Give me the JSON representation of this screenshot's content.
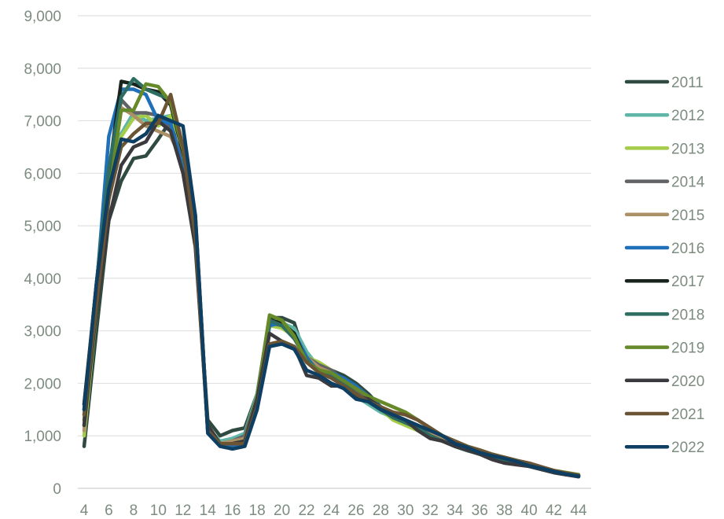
{
  "chart_data": {
    "type": "line",
    "title": "",
    "xlabel": "",
    "ylabel": "",
    "xlim": [
      4,
      44
    ],
    "ylim": [
      0,
      9000
    ],
    "grid": true,
    "legend_position": "right",
    "x_ticks": [
      "4",
      "6",
      "8",
      "10",
      "12",
      "14",
      "16",
      "18",
      "20",
      "22",
      "24",
      "26",
      "28",
      "30",
      "32",
      "34",
      "36",
      "38",
      "40",
      "42",
      "44"
    ],
    "y_ticks": [
      "0",
      "1,000",
      "2,000",
      "3,000",
      "4,000",
      "5,000",
      "6,000",
      "7,000",
      "8,000",
      "9,000"
    ],
    "x": [
      4,
      5,
      6,
      7,
      8,
      9,
      10,
      11,
      12,
      13,
      14,
      15,
      16,
      17,
      18,
      19,
      20,
      21,
      22,
      23,
      24,
      25,
      26,
      27,
      28,
      29,
      30,
      31,
      32,
      33,
      34,
      35,
      36,
      37,
      38,
      39,
      40,
      41,
      42,
      43,
      44
    ],
    "series": [
      {
        "name": "2011",
        "color": "#2f4a40",
        "values": [
          800,
          3000,
          5100,
          5850,
          6280,
          6330,
          6650,
          7000,
          6100,
          4700,
          1300,
          1000,
          1100,
          1150,
          1800,
          3250,
          3250,
          3150,
          2400,
          2350,
          2250,
          2150,
          2000,
          1800,
          1550,
          1400,
          1300,
          1200,
          1050,
          900,
          800,
          730,
          690,
          610,
          560,
          520,
          450,
          390,
          330,
          290,
          250
        ]
      },
      {
        "name": "2012",
        "color": "#5fb6a6",
        "values": [
          1400,
          3700,
          6000,
          6750,
          7150,
          7000,
          7050,
          7100,
          6500,
          5000,
          1150,
          900,
          950,
          1050,
          1800,
          3150,
          3150,
          3050,
          2600,
          2300,
          2200,
          2000,
          1750,
          1600,
          1450,
          1350,
          1250,
          1150,
          1000,
          900,
          800,
          720,
          660,
          600,
          560,
          500,
          420,
          370,
          310,
          280,
          230
        ]
      },
      {
        "name": "2013",
        "color": "#a4cc4a",
        "values": [
          1000,
          3400,
          5750,
          6700,
          7050,
          7100,
          6900,
          7100,
          6500,
          4900,
          1100,
          850,
          900,
          950,
          1700,
          3100,
          3050,
          2900,
          2500,
          2400,
          2250,
          2050,
          1850,
          1700,
          1500,
          1300,
          1200,
          1100,
          1000,
          900,
          800,
          720,
          650,
          600,
          550,
          500,
          420,
          360,
          310,
          270,
          230
        ]
      },
      {
        "name": "2014",
        "color": "#606266",
        "values": [
          1300,
          3800,
          5850,
          7400,
          7150,
          7150,
          7100,
          6850,
          6300,
          4800,
          1150,
          850,
          900,
          1000,
          1750,
          3150,
          3100,
          2900,
          2500,
          2350,
          2250,
          2050,
          1850,
          1700,
          1550,
          1400,
          1300,
          1200,
          1050,
          900,
          800,
          720,
          650,
          600,
          550,
          500,
          430,
          370,
          310,
          280,
          230
        ]
      },
      {
        "name": "2015",
        "color": "#ad9166",
        "values": [
          1100,
          3700,
          5650,
          7250,
          7100,
          6900,
          6800,
          6700,
          6200,
          4700,
          1100,
          850,
          900,
          950,
          1650,
          3200,
          3100,
          2900,
          2500,
          2300,
          2200,
          2000,
          1800,
          1650,
          1500,
          1350,
          1300,
          1150,
          1050,
          950,
          850,
          750,
          700,
          620,
          560,
          510,
          430,
          370,
          320,
          280,
          240
        ]
      },
      {
        "name": "2016",
        "color": "#1f70b8",
        "values": [
          1600,
          3800,
          6700,
          7600,
          7600,
          7500,
          7000,
          6950,
          6100,
          5000,
          1150,
          800,
          800,
          850,
          1600,
          3100,
          3150,
          2950,
          2500,
          2200,
          2200,
          2100,
          1950,
          1750,
          1550,
          1400,
          1300,
          1150,
          1000,
          900,
          800,
          730,
          670,
          610,
          560,
          500,
          420,
          360,
          310,
          280,
          240
        ]
      },
      {
        "name": "2017",
        "color": "#18241d",
        "values": [
          1600,
          3900,
          6000,
          7750,
          7700,
          7600,
          7550,
          7300,
          6400,
          5200,
          1100,
          850,
          850,
          900,
          1650,
          3200,
          3150,
          2950,
          2400,
          2250,
          2150,
          2000,
          1750,
          1650,
          1500,
          1350,
          1250,
          1150,
          1000,
          900,
          800,
          720,
          660,
          600,
          550,
          480,
          420,
          360,
          300,
          260,
          230
        ]
      },
      {
        "name": "2018",
        "color": "#2e6e62",
        "values": [
          1500,
          3900,
          6100,
          7450,
          7800,
          7600,
          7500,
          7400,
          6500,
          5100,
          1150,
          850,
          850,
          900,
          1700,
          3200,
          3100,
          2850,
          2450,
          2200,
          2150,
          2000,
          1800,
          1650,
          1500,
          1350,
          1250,
          1150,
          1000,
          900,
          800,
          720,
          660,
          600,
          550,
          480,
          420,
          360,
          310,
          270,
          230
        ]
      },
      {
        "name": "2019",
        "color": "#668a29",
        "values": [
          1200,
          3600,
          5600,
          7200,
          7200,
          7700,
          7650,
          7350,
          6450,
          5000,
          1100,
          850,
          850,
          900,
          1750,
          3300,
          3200,
          2900,
          2400,
          2250,
          2200,
          2050,
          1900,
          1750,
          1650,
          1550,
          1450,
          1300,
          1150,
          1000,
          900,
          800,
          730,
          650,
          590,
          530,
          450,
          390,
          340,
          300,
          260
        ]
      },
      {
        "name": "2020",
        "color": "#3a3a3e",
        "values": [
          1200,
          3400,
          5100,
          6150,
          6500,
          6600,
          7000,
          6800,
          6000,
          4600,
          1200,
          850,
          850,
          900,
          1700,
          2950,
          2800,
          2700,
          2150,
          2100,
          1950,
          1950,
          1750,
          1700,
          1550,
          1400,
          1300,
          1100,
          950,
          900,
          800,
          730,
          650,
          550,
          480,
          450,
          420,
          360,
          300,
          260,
          220
        ]
      },
      {
        "name": "2021",
        "color": "#6b5433",
        "values": [
          1400,
          3500,
          5500,
          6500,
          6750,
          6950,
          6950,
          7500,
          6500,
          4800,
          1100,
          850,
          850,
          850,
          1550,
          2750,
          2800,
          2700,
          2400,
          2200,
          2100,
          1950,
          1800,
          1650,
          1550,
          1450,
          1400,
          1300,
          1150,
          1000,
          900,
          800,
          730,
          650,
          590,
          530,
          480,
          410,
          340,
          290,
          250
        ]
      },
      {
        "name": "2022",
        "color": "#0e3f62",
        "values": [
          1500,
          3900,
          5700,
          6650,
          6600,
          6750,
          7100,
          7000,
          6900,
          5200,
          1050,
          800,
          750,
          800,
          1500,
          2700,
          2750,
          2650,
          2250,
          2150,
          2000,
          1900,
          1700,
          1650,
          1500,
          1400,
          1300,
          1200,
          1100,
          1000,
          850,
          780,
          680,
          620,
          570,
          510,
          430,
          380,
          320,
          270,
          230
        ]
      }
    ]
  }
}
